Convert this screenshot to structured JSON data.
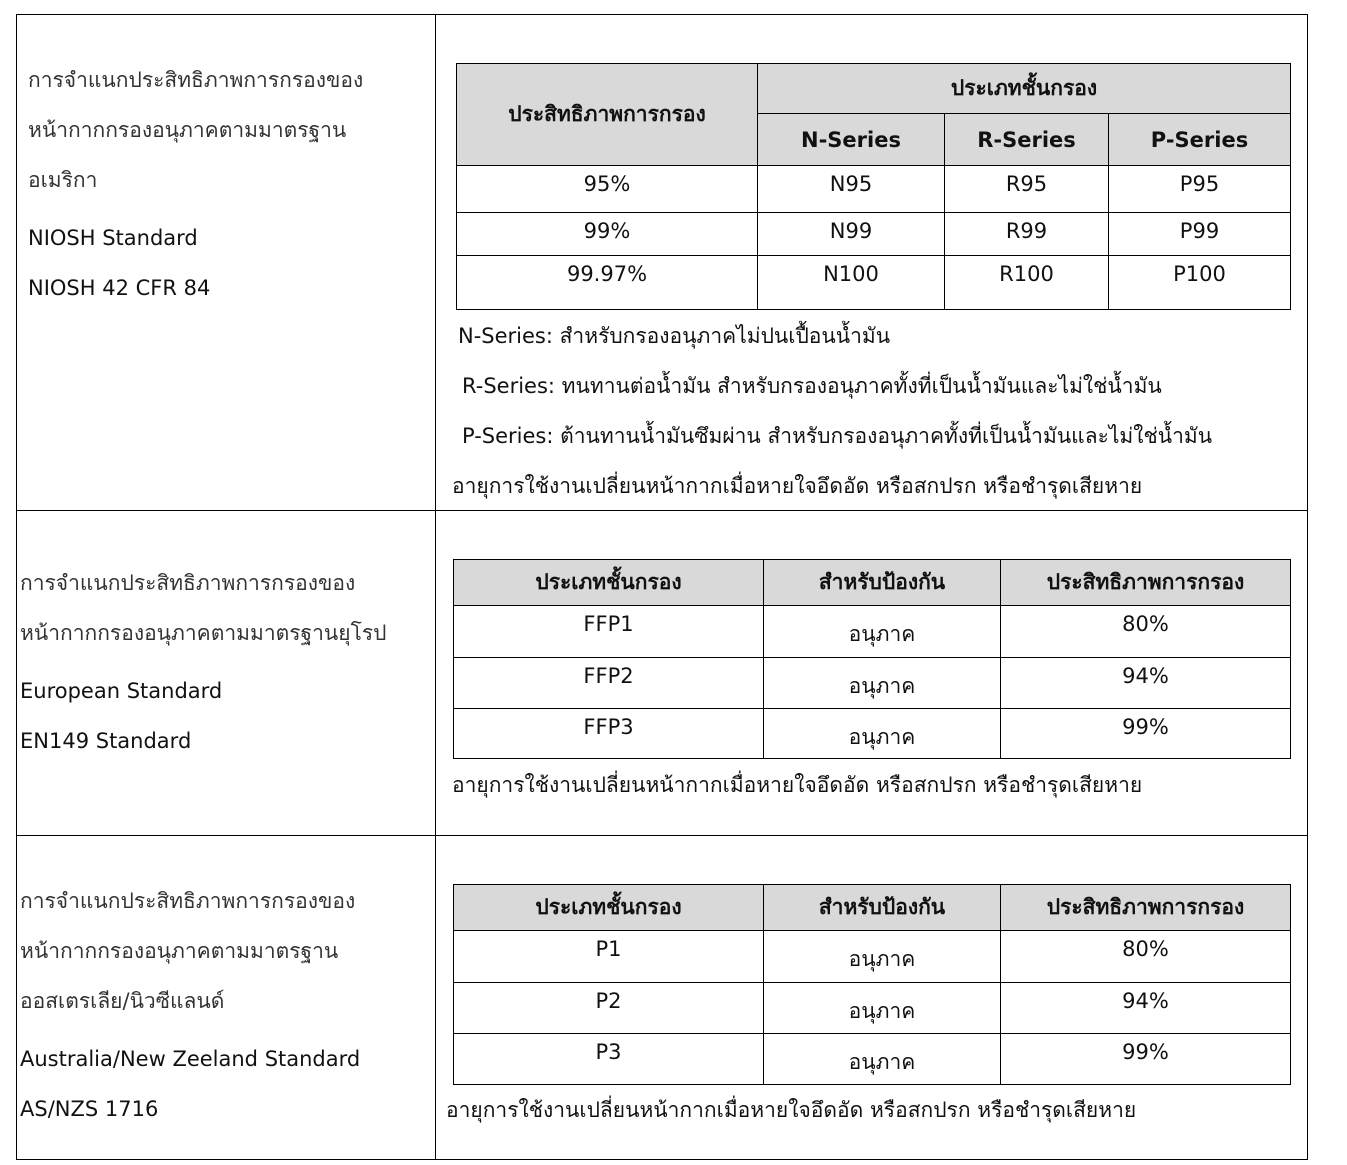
{
  "sections": [
    {
      "left": [
        "การจำแนกประสิทธิภาพการกรองของ",
        "หน้ากากกรองอนุภาคตามมาตรฐาน",
        "อเมริกา",
        "NIOSH Standard",
        "NIOSH 42 CFR 84"
      ],
      "table": {
        "header_efficiency": "ประสิทธิภาพการกรอง",
        "header_group": "ประเภทชั้นกรอง",
        "series": [
          "N-Series",
          "R-Series",
          "P-Series"
        ],
        "rows": [
          [
            "95%",
            "N95",
            "R95",
            "P95"
          ],
          [
            "99%",
            "N99",
            "R99",
            "P99"
          ],
          [
            "99.97%",
            "N100",
            "R100",
            "P100"
          ]
        ]
      },
      "notes": [
        "N-Series: สำหรับกรองอนุภาคไม่ปนเปื้อนน้ำมัน",
        "R-Series: ทนทานต่อน้ำมัน สำหรับกรองอนุภาคทั้งที่เป็นน้ำมันและไม่ใช่น้ำมัน",
        "P-Series: ต้านทานน้ำมันซึมผ่าน สำหรับกรองอนุภาคทั้งที่เป็นน้ำมันและไม่ใช่น้ำมัน",
        "อายุการใช้งานเปลี่ยนหน้ากากเมื่อหายใจอึดอัด หรือสกปรก หรือชำรุดเสียหาย"
      ]
    },
    {
      "left": [
        "การจำแนกประสิทธิภาพการกรองของ",
        "หน้ากากกรองอนุภาคตามมาตรฐานยุโรป",
        "European Standard",
        "EN149 Standard"
      ],
      "table": {
        "headers": [
          "ประเภทชั้นกรอง",
          "สำหรับป้องกัน",
          "ประสิทธิภาพการกรอง"
        ],
        "rows": [
          [
            "FFP1",
            "อนุภาค",
            "80%"
          ],
          [
            "FFP2",
            "อนุภาค",
            "94%"
          ],
          [
            "FFP3",
            "อนุภาค",
            "99%"
          ]
        ]
      },
      "note": "อายุการใช้งานเปลี่ยนหน้ากากเมื่อหายใจอึดอัด หรือสกปรก หรือชำรุดเสียหาย"
    },
    {
      "left": [
        "การจำแนกประสิทธิภาพการกรองของ",
        "หน้ากากกรองอนุภาคตามมาตรฐาน",
        "ออสเตรเลีย/นิวซีแลนด์",
        "Australia/New Zeeland Standard",
        "AS/NZS 1716"
      ],
      "table": {
        "headers": [
          "ประเภทชั้นกรอง",
          "สำหรับป้องกัน",
          "ประสิทธิภาพการกรอง"
        ],
        "rows": [
          [
            "P1",
            "อนุภาค",
            "80%"
          ],
          [
            "P2",
            "อนุภาค",
            "94%"
          ],
          [
            "P3",
            "อนุภาค",
            "99%"
          ]
        ]
      },
      "note": "อายุการใช้งานเปลี่ยนหน้ากากเมื่อหายใจอึดอัด หรือสกปรก หรือชำรุดเสียหาย"
    }
  ],
  "colors": {
    "header_bg": "#d9d9d9"
  }
}
